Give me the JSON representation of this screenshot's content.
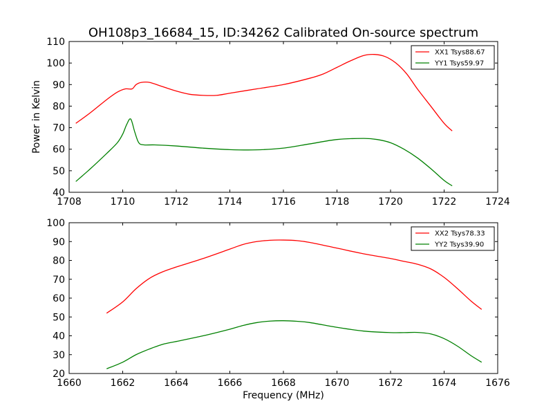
{
  "figure_title": "OH108p3_16684_15, ID:34262 Calibrated On-source spectrum",
  "chart_data": [
    {
      "type": "line",
      "ylabel": "Power in Kelvin",
      "xlabel": "",
      "xlim": [
        1708,
        1724
      ],
      "ylim": [
        40,
        110
      ],
      "xticks": [
        1708,
        1710,
        1712,
        1714,
        1716,
        1718,
        1720,
        1722,
        1724
      ],
      "yticks": [
        40,
        50,
        60,
        70,
        80,
        90,
        100,
        110
      ],
      "grid": false,
      "legend_position": "top-right",
      "series": [
        {
          "name": "XX1 Tsys88.67",
          "color": "#ff0000",
          "x": [
            1708.25,
            1708.8,
            1709.4,
            1709.8,
            1710.1,
            1710.35,
            1710.5,
            1710.7,
            1711.0,
            1711.5,
            1712.0,
            1712.5,
            1713.0,
            1713.5,
            1714.0,
            1715.0,
            1716.0,
            1717.0,
            1717.5,
            1718.0,
            1718.5,
            1719.0,
            1719.4,
            1719.8,
            1720.2,
            1720.6,
            1721.0,
            1721.5,
            1722.0,
            1722.3
          ],
          "y": [
            72,
            77,
            83,
            86.5,
            88,
            88,
            90,
            91,
            91,
            89,
            87,
            85.5,
            85,
            85,
            86,
            88,
            90,
            93,
            95,
            98,
            101,
            103.5,
            104,
            103,
            100,
            95,
            88,
            80,
            72,
            68.5
          ]
        },
        {
          "name": "YY1 Tsys59.97",
          "color": "#008000",
          "x": [
            1708.25,
            1708.8,
            1709.4,
            1709.8,
            1710.0,
            1710.15,
            1710.3,
            1710.45,
            1710.6,
            1710.8,
            1711.2,
            1712.0,
            1713.0,
            1714.0,
            1715.0,
            1716.0,
            1717.0,
            1718.0,
            1719.0,
            1719.5,
            1720.0,
            1720.5,
            1721.0,
            1721.5,
            1722.0,
            1722.3
          ],
          "y": [
            45,
            51,
            58,
            63,
            67,
            71.5,
            74,
            68,
            63,
            62,
            62,
            61.5,
            60.5,
            59.8,
            59.7,
            60.5,
            62.5,
            64.5,
            65,
            64.5,
            63,
            60,
            56,
            51,
            45.5,
            43
          ]
        }
      ]
    },
    {
      "type": "line",
      "xlabel": "Frequency (MHz)",
      "ylabel": "",
      "xlim": [
        1660,
        1676
      ],
      "ylim": [
        20,
        100
      ],
      "xticks": [
        1660,
        1662,
        1664,
        1666,
        1668,
        1670,
        1672,
        1674,
        1676
      ],
      "yticks": [
        20,
        30,
        40,
        50,
        60,
        70,
        80,
        90,
        100
      ],
      "grid": false,
      "legend_position": "top-right",
      "series": [
        {
          "name": "XX2 Tsys78.33",
          "color": "#ff0000",
          "x": [
            1661.4,
            1662.0,
            1662.5,
            1663.0,
            1663.5,
            1664.0,
            1665.0,
            1666.0,
            1666.5,
            1667.0,
            1667.5,
            1668.0,
            1668.5,
            1669.0,
            1670.0,
            1671.0,
            1672.0,
            1672.5,
            1673.0,
            1673.5,
            1674.0,
            1674.5,
            1675.0,
            1675.4
          ],
          "y": [
            52,
            58,
            65,
            70.5,
            74,
            76.5,
            81,
            86,
            88.5,
            90,
            90.7,
            90.8,
            90.5,
            89.5,
            86.5,
            83.5,
            81,
            79.5,
            78,
            75.5,
            71,
            65,
            58.5,
            54
          ]
        },
        {
          "name": "YY2 Tsys39.90",
          "color": "#008000",
          "x": [
            1661.4,
            1662.0,
            1662.5,
            1663.0,
            1663.5,
            1664.0,
            1665.0,
            1666.0,
            1666.5,
            1667.0,
            1667.5,
            1668.0,
            1668.5,
            1669.0,
            1670.0,
            1671.0,
            1672.0,
            1672.5,
            1673.0,
            1673.5,
            1674.0,
            1674.5,
            1675.0,
            1675.4
          ],
          "y": [
            22.5,
            26,
            30,
            33,
            35.5,
            37,
            40,
            43.5,
            45.5,
            47,
            47.8,
            48,
            47.7,
            47,
            44.5,
            42.5,
            41.7,
            41.7,
            41.8,
            41,
            38.5,
            34.5,
            29.5,
            26
          ]
        }
      ]
    }
  ]
}
